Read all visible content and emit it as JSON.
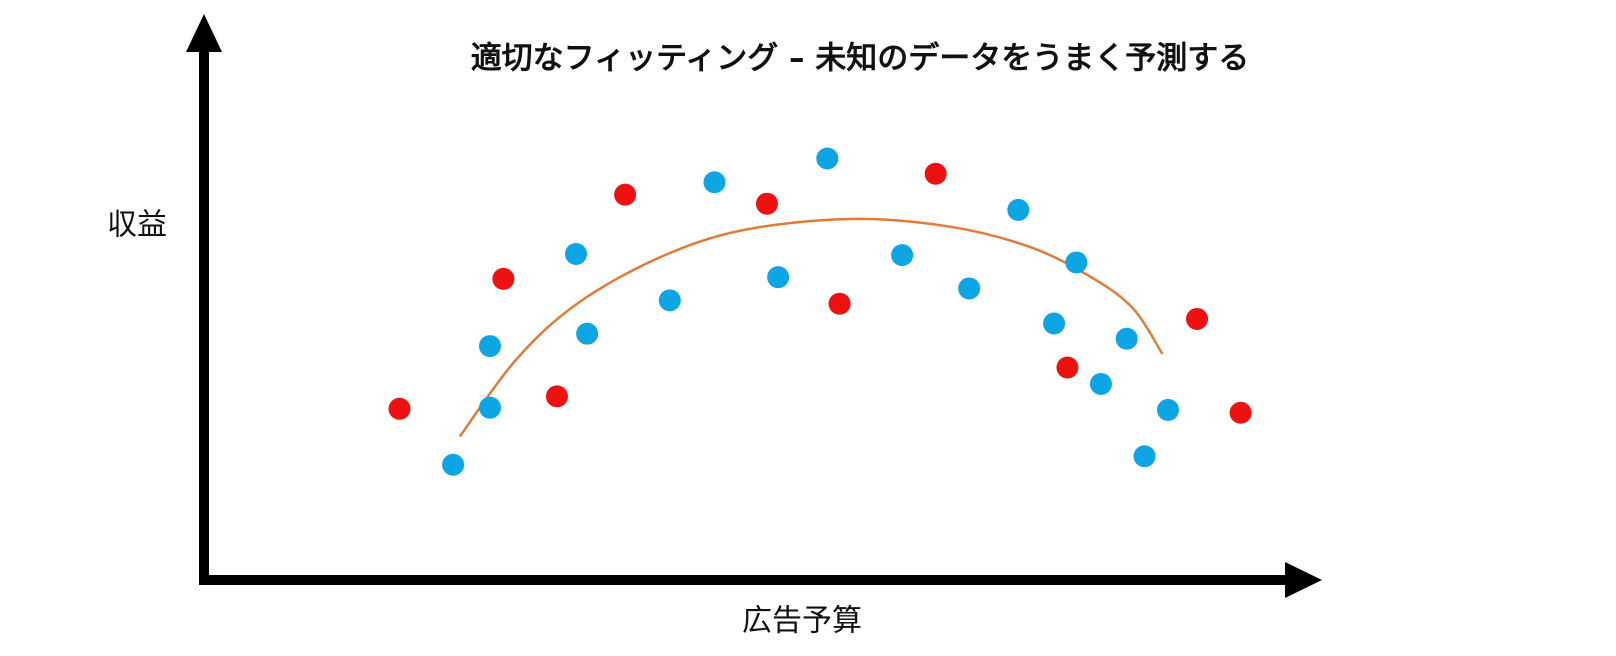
{
  "chart_data": {
    "type": "scatter",
    "title": "適切なフィッティング – 未知のデータをうまく予測する",
    "x_label": "広告予算",
    "y_label": "収益",
    "xlim": [
      0,
      100
    ],
    "ylim": [
      0,
      100
    ],
    "series": [
      {
        "color": "#0ea5e4",
        "x": [
          22.3,
          25.6,
          25.6,
          33.3,
          34.3,
          41.7,
          45.7,
          51.4,
          55.8,
          62.5,
          68.5,
          72.9,
          76.1,
          78.1,
          80.3,
          82.6,
          84.2,
          86.3
        ],
        "values": [
          20.4,
          30.5,
          41.4,
          57.7,
          43.6,
          49.5,
          70.4,
          53.6,
          74.6,
          57.5,
          51.6,
          65.5,
          45.4,
          56.2,
          34.7,
          42.7,
          21.9,
          30.1
        ]
      },
      {
        "color": "#ee1111",
        "x": [
          17.5,
          26.8,
          31.6,
          37.7,
          50.4,
          56.9,
          65.5,
          77.3,
          88.9,
          92.8
        ],
        "values": [
          30.3,
          53.3,
          32.5,
          68.2,
          66.6,
          48.9,
          71.9,
          37.6,
          46.2,
          29.6
        ]
      }
    ],
    "fit_curve": {
      "color": "#e07b39",
      "x": [
        22.9,
        27.9,
        33.4,
        40.8,
        48.2,
        57.8,
        66.6,
        74.0,
        79.5,
        83.2,
        85.8
      ],
      "values": [
        25.4,
        38.9,
        48.9,
        57.1,
        61.9,
        63.9,
        62.6,
        58.9,
        53.5,
        48.0,
        40.0
      ]
    }
  }
}
